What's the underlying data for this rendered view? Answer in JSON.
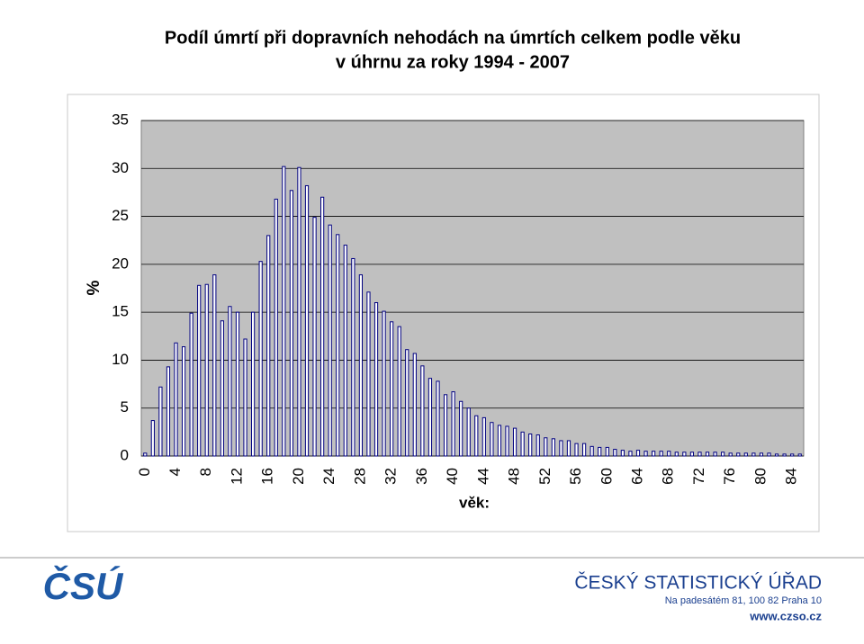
{
  "chart_data": {
    "type": "bar",
    "title": "Podíl úmrtí při dopravních nehodách na úmrtích celkem podle věku",
    "subtitle": "v úhrnu za roky 1994 - 2007",
    "y_label": "%",
    "x_label": "věk:",
    "categories": [
      "0",
      null,
      null,
      null,
      "4",
      null,
      null,
      null,
      "8",
      null,
      null,
      null,
      "12",
      null,
      null,
      null,
      "16",
      null,
      null,
      null,
      "20",
      null,
      null,
      null,
      "24",
      null,
      null,
      null,
      "28",
      null,
      null,
      null,
      "32",
      null,
      null,
      null,
      "36",
      null,
      null,
      null,
      "40",
      null,
      null,
      null,
      "44",
      null,
      null,
      null,
      "48",
      null,
      null,
      null,
      "52",
      null,
      null,
      null,
      "56",
      null,
      null,
      null,
      "60",
      null,
      null,
      null,
      "64",
      null,
      null,
      null,
      "68",
      null,
      null,
      null,
      "72",
      null,
      null,
      null,
      "76",
      null,
      null,
      null,
      "80",
      null,
      null,
      null,
      "84",
      null
    ],
    "values": [
      0.3,
      3.7,
      7.2,
      9.3,
      11.8,
      11.4,
      14.9,
      17.8,
      17.9,
      18.9,
      14.1,
      15.6,
      15.0,
      12.2,
      15.0,
      20.3,
      23.0,
      26.8,
      30.2,
      27.7,
      30.1,
      28.2,
      24.9,
      27.0,
      24.1,
      23.1,
      22.0,
      20.6,
      18.9,
      17.1,
      16.0,
      15.1,
      14.0,
      13.5,
      11.1,
      10.7,
      9.4,
      8.1,
      7.8,
      6.4,
      6.7,
      5.7,
      5.0,
      4.2,
      4.0,
      3.5,
      3.2,
      3.1,
      2.9,
      2.5,
      2.3,
      2.2,
      1.9,
      1.8,
      1.6,
      1.6,
      1.3,
      1.3,
      1.0,
      0.9,
      0.9,
      0.7,
      0.6,
      0.5,
      0.6,
      0.5,
      0.5,
      0.5,
      0.5,
      0.4,
      0.4,
      0.4,
      0.4,
      0.4,
      0.4,
      0.4,
      0.3,
      0.3,
      0.3,
      0.3,
      0.3,
      0.3,
      0.2,
      0.2,
      0.2,
      0.2
    ],
    "color": "#ffffff",
    "edge_color": "#000080",
    "plot_background": "#c0c0c0",
    "ylim": [
      0,
      35
    ],
    "yticks": [
      0,
      5,
      10,
      15,
      20,
      25,
      30,
      35
    ],
    "grid": true
  },
  "footer": {
    "logo": "ČSÚ",
    "organization": "ČESKÝ STATISTICKÝ ÚŘAD",
    "address": "Na padesátém 81, 100 82  Praha 10",
    "web": "www.czso.cz"
  }
}
